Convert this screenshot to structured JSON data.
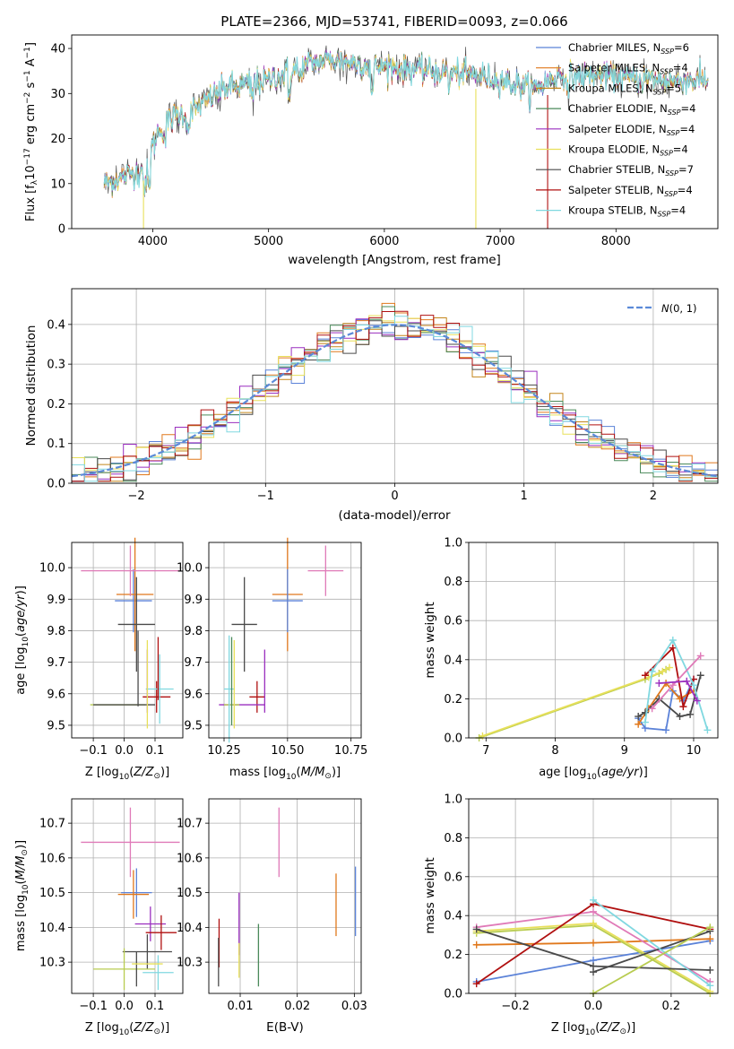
{
  "colors": {
    "chabrier_miles": "#5b82d8",
    "salpeter_miles": "#e0781c",
    "kroupa_miles": "#c4861c",
    "chabrier_elodie": "#4a8a5a",
    "salpeter_elodie": "#9a2fbf",
    "kroupa_elodie": "#e8e05a",
    "chabrier_stelib": "#4a4a4a",
    "salpeter_stelib": "#b01010",
    "kroupa_stelib": "#80d8e0",
    "pink": "#e07ab8",
    "olive": "#b8cc50",
    "gaussian": "#5b8ad8"
  },
  "chart_data": [
    {
      "id": "spectrum",
      "type": "line",
      "title": "PLATE=2366, MJD=53741, FIBERID=0093, z=0.066",
      "xlabel": "wavelength [Angstrom, rest frame]",
      "ylabel": "Flux [f$_\\lambda$10$^{-17}$ erg cm$^{-2}$ s$^{-1}$ A$^{-1}$]",
      "xlim": [
        3300,
        8880
      ],
      "ylim": [
        0,
        43
      ],
      "xticks": [
        "4000",
        "5000",
        "6000",
        "7000",
        "8000"
      ],
      "yticks": [
        "0",
        "10",
        "20",
        "30",
        "40"
      ],
      "legend_position": "upper right",
      "legend": [
        {
          "label": "Chabrier MILES, N",
          "sub": "SSP",
          "tail": "=6"
        },
        {
          "label": "Salpeter MILES, N",
          "sub": "SSP",
          "tail": "=4"
        },
        {
          "label": "Kroupa MILES, N",
          "sub": "SSP",
          "tail": "=5"
        },
        {
          "label": "Chabrier ELODIE, N",
          "sub": "SSP",
          "tail": "=4"
        },
        {
          "label": "Salpeter ELODIE, N",
          "sub": "SSP",
          "tail": "=4"
        },
        {
          "label": "Kroupa ELODIE, N",
          "sub": "SSP",
          "tail": "=4"
        },
        {
          "label": "Chabrier STELIB, N",
          "sub": "SSP",
          "tail": "=7"
        },
        {
          "label": "Salpeter STELIB, N",
          "sub": "SSP",
          "tail": "=4"
        },
        {
          "label": "Kroupa STELIB, N",
          "sub": "SSP",
          "tail": "=4"
        }
      ],
      "continuum": [
        [
          3580,
          10
        ],
        [
          3700,
          11
        ],
        [
          3800,
          12
        ],
        [
          3900,
          13
        ],
        [
          3960,
          15
        ],
        [
          4050,
          22
        ],
        [
          4200,
          25
        ],
        [
          4350,
          26
        ],
        [
          4450,
          28
        ],
        [
          4600,
          31
        ],
        [
          4800,
          32
        ],
        [
          5000,
          33
        ],
        [
          5200,
          35
        ],
        [
          5400,
          37
        ],
        [
          5600,
          37.5
        ],
        [
          5800,
          36.5
        ],
        [
          6000,
          36
        ],
        [
          6200,
          35.5
        ],
        [
          6400,
          35
        ],
        [
          6600,
          34.5
        ],
        [
          6800,
          34
        ],
        [
          7000,
          33
        ],
        [
          7150,
          32
        ],
        [
          7300,
          31
        ],
        [
          7500,
          34
        ],
        [
          7800,
          34
        ],
        [
          8100,
          33.5
        ],
        [
          8400,
          33
        ],
        [
          8800,
          33
        ]
      ]
    },
    {
      "id": "residuals",
      "type": "line",
      "xlabel": "(data-model)/error",
      "ylabel": "Normed distribution",
      "xlim": [
        -2.5,
        2.5
      ],
      "ylim": [
        0,
        0.49
      ],
      "xticks": [
        "−2",
        "−1",
        "0",
        "1",
        "2"
      ],
      "yticks": [
        "0.0",
        "0.1",
        "0.2",
        "0.3",
        "0.4"
      ],
      "legend": [
        "N(0, 1)"
      ],
      "legend_position": "upper right",
      "grid": true,
      "bins": {
        "start": -2.5,
        "width": 0.1,
        "count": 50
      }
    },
    {
      "id": "age_vs_Z",
      "type": "scatter",
      "xlabel": "Z [log₁₀(Z/Z⊙)]",
      "ylabel": "age  [log₁₀(age/yr)]",
      "xlim": [
        -0.17,
        0.19
      ],
      "ylim": [
        9.46,
        10.08
      ],
      "xticks": [
        "−0.1",
        "0.0",
        "0.1"
      ],
      "yticks": [
        "9.5",
        "9.6",
        "9.7",
        "9.8",
        "9.9",
        "10.0"
      ],
      "grid": true,
      "points": [
        {
          "c": "chabrier_miles",
          "x": 0.03,
          "xe": 0.06,
          "y": 9.895,
          "ye": 0.1
        },
        {
          "c": "salpeter_miles",
          "x": 0.035,
          "xe": 0.06,
          "y": 9.915,
          "ye": 0.18
        },
        {
          "c": "pink",
          "x": 0.02,
          "xe": 0.16,
          "y": 9.99,
          "ye": 0.08
        },
        {
          "c": "chabrier_stelib",
          "x": 0.04,
          "xe": 0.06,
          "y": 9.82,
          "ye": 0.15
        },
        {
          "c": "salpeter_stelib",
          "x": 0.105,
          "xe": 0.045,
          "y": 9.59,
          "ye": 0.05
        },
        {
          "c": "kroupa_stelib",
          "x": 0.115,
          "xe": 0.045,
          "y": 9.615,
          "ye": 0.11
        },
        {
          "c": "salpeter_elodie",
          "x": 0.075,
          "xe": 0.0,
          "y": 9.64,
          "ye": 0.1
        },
        {
          "c": "olive",
          "x": -0.02,
          "xe": 0.09,
          "y": 9.565,
          "ye": 0.0
        },
        {
          "c": "chabrier_stelib",
          "x": 0.0,
          "xe": 0.1,
          "y": 9.565,
          "ye": 0.0
        },
        {
          "c": "kroupa_elodie",
          "x": 0.075,
          "xe": 0.0,
          "y": 9.63,
          "ye": 0.14
        },
        {
          "c": "chabrier_stelib",
          "x": 0.045,
          "xe": 0.0,
          "y": 9.68,
          "ye": 0.12
        },
        {
          "c": "salpeter_stelib",
          "x": 0.11,
          "xe": 0.0,
          "y": 9.68,
          "ye": 0.1
        }
      ]
    },
    {
      "id": "age_vs_mass",
      "type": "scatter",
      "xlabel": "mass [log₁₀(M/M⊙)]",
      "xlim": [
        10.19,
        10.79
      ],
      "ylim": [
        9.46,
        10.08
      ],
      "xticks": [
        "10.25",
        "10.50",
        "10.75"
      ],
      "yticks": [
        "9.5",
        "9.6",
        "9.7",
        "9.8",
        "9.9",
        "10.0"
      ],
      "grid": true,
      "points": [
        {
          "c": "pink",
          "x": 10.65,
          "xe": 0.07,
          "y": 9.99,
          "ye": 0.08
        },
        {
          "c": "salpeter_miles",
          "x": 10.5,
          "xe": 0.06,
          "y": 9.915,
          "ye": 0.18
        },
        {
          "c": "chabrier_miles",
          "x": 10.5,
          "xe": 0.06,
          "y": 9.895,
          "ye": 0.1
        },
        {
          "c": "chabrier_stelib",
          "x": 10.33,
          "xe": 0.05,
          "y": 9.82,
          "ye": 0.15
        },
        {
          "c": "salpeter_stelib",
          "x": 10.38,
          "xe": 0.03,
          "y": 9.59,
          "ye": 0.05
        },
        {
          "c": "salpeter_elodie",
          "x": 10.41,
          "xe": 0.0,
          "y": 9.64,
          "ye": 0.1
        },
        {
          "c": "salpeter_elodie",
          "x": 10.32,
          "xe": 0.09,
          "y": 9.565,
          "ye": 0.0
        },
        {
          "c": "olive",
          "x": 10.28,
          "xe": 0.03,
          "y": 9.565,
          "ye": 0.0
        },
        {
          "c": "kroupa_stelib",
          "x": 10.27,
          "xe": 0.02,
          "y": 9.615,
          "ye": 0.17
        },
        {
          "c": "kroupa_elodie",
          "x": 10.29,
          "xe": 0.0,
          "y": 9.63,
          "ye": 0.14
        },
        {
          "c": "chabrier_elodie",
          "x": 10.28,
          "xe": 0.0,
          "y": 9.64,
          "ye": 0.14
        }
      ]
    },
    {
      "id": "weights_vs_age",
      "type": "line",
      "xlabel": "age  [log₁₀(age/yr)]",
      "ylabel": "mass weight",
      "xlim": [
        6.75,
        10.35
      ],
      "ylim": [
        0.0,
        1.0
      ],
      "xticks": [
        "7",
        "8",
        "9",
        "10"
      ],
      "yticks": [
        "0.0",
        "0.2",
        "0.4",
        "0.6",
        "0.8",
        "1.0"
      ],
      "grid": true,
      "series": [
        {
          "c": "olive",
          "x": [
            6.9,
            9.3,
            9.5,
            9.6
          ],
          "y": [
            0.0,
            0.3,
            0.33,
            0.35
          ]
        },
        {
          "c": "kroupa_elodie",
          "x": [
            6.95,
            9.35,
            9.55,
            9.65
          ],
          "y": [
            0.01,
            0.31,
            0.34,
            0.36
          ]
        },
        {
          "c": "chabrier_miles",
          "x": [
            9.2,
            9.3,
            9.6,
            9.7,
            9.85,
            10.0
          ],
          "y": [
            0.1,
            0.05,
            0.04,
            0.24,
            0.19,
            0.3
          ]
        },
        {
          "c": "salpeter_miles",
          "x": [
            9.2,
            9.35,
            9.6,
            9.8,
            10.0
          ],
          "y": [
            0.07,
            0.15,
            0.28,
            0.2,
            0.24
          ]
        },
        {
          "c": "chabrier_stelib",
          "x": [
            9.2,
            9.3,
            9.5,
            9.8,
            9.95,
            10.1
          ],
          "y": [
            0.11,
            0.13,
            0.2,
            0.11,
            0.12,
            0.32
          ]
        },
        {
          "c": "salpeter_stelib",
          "x": [
            9.3,
            9.7,
            9.85,
            10.0
          ],
          "y": [
            0.32,
            0.46,
            0.16,
            0.3
          ]
        },
        {
          "c": "kroupa_stelib",
          "x": [
            9.3,
            9.4,
            9.7,
            10.0,
            10.2
          ],
          "y": [
            0.08,
            0.34,
            0.5,
            0.27,
            0.04
          ]
        },
        {
          "c": "pink",
          "x": [
            9.4,
            9.7,
            10.1
          ],
          "y": [
            0.15,
            0.27,
            0.42
          ]
        },
        {
          "c": "salpeter_elodie",
          "x": [
            9.5,
            9.9,
            10.05
          ],
          "y": [
            0.28,
            0.29,
            0.19
          ]
        }
      ]
    },
    {
      "id": "mass_vs_Z",
      "type": "scatter",
      "xlabel": "Z [log₁₀(Z/Z⊙)]",
      "ylabel": "mass [log₁₀(M/M⊙)]",
      "xlim": [
        -0.17,
        0.19
      ],
      "ylim": [
        10.21,
        10.77
      ],
      "xticks": [
        "−0.1",
        "0.0",
        "0.1"
      ],
      "yticks": [
        "10.3",
        "10.4",
        "10.5",
        "10.6",
        "10.7"
      ],
      "grid": true,
      "points": [
        {
          "c": "pink",
          "x": 0.02,
          "xe": 0.16,
          "y": 10.645,
          "ye": 0.1
        },
        {
          "c": "chabrier_miles",
          "x": 0.04,
          "xe": 0.05,
          "y": 10.5,
          "ye": 0.07
        },
        {
          "c": "salpeter_miles",
          "x": 0.03,
          "xe": 0.05,
          "y": 10.495,
          "ye": 0.07
        },
        {
          "c": "salpeter_elodie",
          "x": 0.085,
          "xe": 0.05,
          "y": 10.41,
          "ye": 0.05
        },
        {
          "c": "salpeter_stelib",
          "x": 0.12,
          "xe": 0.05,
          "y": 10.385,
          "ye": 0.05
        },
        {
          "c": "chabrier_stelib",
          "x": 0.075,
          "xe": 0.08,
          "y": 10.33,
          "ye": 0.05
        },
        {
          "c": "olive",
          "x": 0.0,
          "xe": 0.1,
          "y": 10.28,
          "ye": 0.06
        },
        {
          "c": "kroupa_stelib",
          "x": 0.11,
          "xe": 0.05,
          "y": 10.27,
          "ye": 0.05
        },
        {
          "c": "chabrier_stelib",
          "x": 0.04,
          "xe": 0.0,
          "y": 10.28,
          "ye": 0.05
        },
        {
          "c": "kroupa_elodie",
          "x": 0.075,
          "xe": 0.05,
          "y": 10.295,
          "ye": 0.0
        }
      ]
    },
    {
      "id": "mass_vs_ebv",
      "type": "scatter",
      "xlabel": "E(B-V)",
      "xlim": [
        0.0045,
        0.0312
      ],
      "ylim": [
        10.21,
        10.77
      ],
      "xticks": [
        "0.01",
        "0.02",
        "0.03"
      ],
      "yticks": [
        "10.3",
        "10.4",
        "10.5",
        "10.6",
        "10.7"
      ],
      "grid": true,
      "points": [
        {
          "c": "pink",
          "x": 0.0168,
          "xe": 0.0,
          "y": 10.645,
          "ye": 0.1
        },
        {
          "c": "salpeter_miles",
          "x": 0.0268,
          "xe": 0.0,
          "y": 10.465,
          "ye": 0.09
        },
        {
          "c": "chabrier_miles",
          "x": 0.0302,
          "xe": 0.0,
          "y": 10.475,
          "ye": 0.1
        },
        {
          "c": "salpeter_elodie",
          "x": 0.0098,
          "xe": 0.0,
          "y": 10.41,
          "ye": 0.09
        },
        {
          "c": "salpeter_stelib",
          "x": 0.0063,
          "xe": 0.0,
          "y": 10.355,
          "ye": 0.07
        },
        {
          "c": "chabrier_stelib",
          "x": 0.0062,
          "xe": 0.0,
          "y": 10.3,
          "ye": 0.07
        },
        {
          "c": "chabrier_elodie",
          "x": 0.0132,
          "xe": 0.0,
          "y": 10.32,
          "ye": 0.09
        },
        {
          "c": "kroupa_elodie",
          "x": 0.0098,
          "xe": 0.0,
          "y": 10.305,
          "ye": 0.05
        }
      ]
    },
    {
      "id": "weights_vs_Z",
      "type": "line",
      "xlabel": "Z [log₁₀(Z/Z⊙)]",
      "ylabel": "mass weight",
      "xlim": [
        -0.32,
        0.32
      ],
      "ylim": [
        0.0,
        1.0
      ],
      "xticks": [
        "−0.2",
        "0.0",
        "0.2"
      ],
      "yticks": [
        "0.0",
        "0.2",
        "0.4",
        "0.6",
        "0.8",
        "1.0"
      ],
      "grid": true,
      "series": [
        {
          "c": "chabrier_miles",
          "x": [
            -0.3,
            0.0,
            0.3
          ],
          "y": [
            0.06,
            0.17,
            0.27
          ]
        },
        {
          "c": "salpeter_miles",
          "x": [
            -0.3,
            0.0,
            0.3
          ],
          "y": [
            0.25,
            0.26,
            0.28
          ]
        },
        {
          "c": "pink",
          "x": [
            -0.3,
            0.0,
            0.3
          ],
          "y": [
            0.34,
            0.42,
            0.06
          ]
        },
        {
          "c": "olive",
          "x": [
            -0.3,
            0.0,
            0.3
          ],
          "y": [
            0.31,
            0.35,
            0.0
          ]
        },
        {
          "c": "kroupa_elodie",
          "x": [
            -0.3,
            0.0,
            0.3
          ],
          "y": [
            0.32,
            0.36,
            0.01
          ]
        },
        {
          "c": "salpeter_stelib",
          "x": [
            -0.3,
            0.0,
            0.3
          ],
          "y": [
            0.05,
            0.46,
            0.33
          ]
        },
        {
          "c": "chabrier_stelib",
          "x": [
            -0.3,
            0.0,
            0.3
          ],
          "y": [
            0.33,
            0.14,
            0.12
          ]
        },
        {
          "c": "chabrier_stelib",
          "x": [
            0.0,
            0.3
          ],
          "y": [
            0.11,
            0.32
          ]
        },
        {
          "c": "kroupa_stelib",
          "x": [
            0.0,
            0.3
          ],
          "y": [
            0.48,
            0.04
          ]
        },
        {
          "c": "olive",
          "x": [
            0.0,
            0.3
          ],
          "y": [
            0.0,
            0.34
          ]
        }
      ]
    }
  ]
}
